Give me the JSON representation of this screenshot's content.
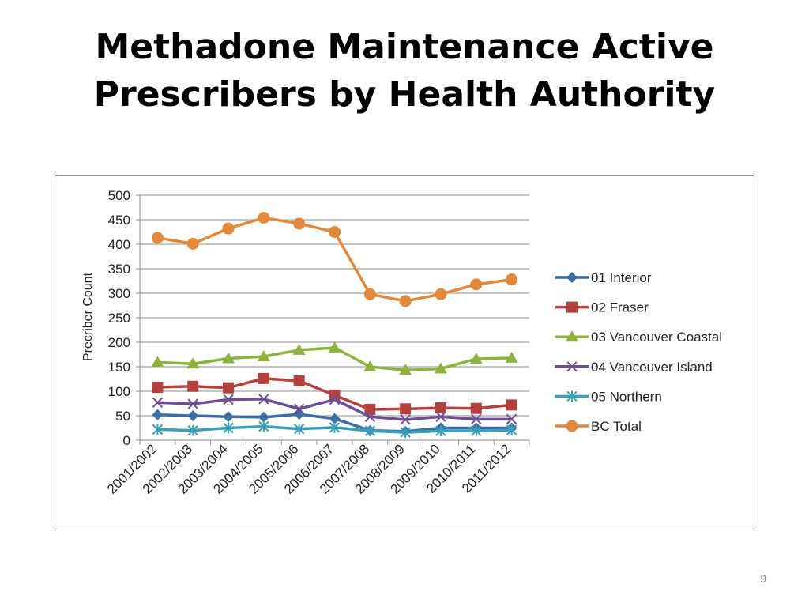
{
  "slide": {
    "title_line1": "Methadone Maintenance Active",
    "title_line2": "Prescribers by Health Authority",
    "page_number": "9"
  },
  "chart_data": {
    "type": "line",
    "title": "",
    "xlabel": "",
    "ylabel": "Precriber Count",
    "ylim": [
      0,
      500
    ],
    "yticks": [
      0,
      50,
      100,
      150,
      200,
      250,
      300,
      350,
      400,
      450,
      500
    ],
    "grid": true,
    "legend": "right",
    "categories": [
      "2001/2002",
      "2002/2003",
      "2003/2004",
      "2004/2005",
      "2005/2006",
      "2006/2007",
      "2007/2008",
      "2008/2009",
      "2009/2010",
      "2010/2011",
      "2011/2012"
    ],
    "series": [
      {
        "name": "01 Interior",
        "color": "#3a6ea5",
        "marker": "diamond",
        "values": [
          52,
          50,
          48,
          47,
          53,
          44,
          20,
          18,
          25,
          25,
          25
        ]
      },
      {
        "name": "02 Fraser",
        "color": "#b5413c",
        "marker": "square",
        "values": [
          108,
          110,
          107,
          126,
          121,
          92,
          63,
          64,
          66,
          65,
          72
        ]
      },
      {
        "name": "03 Vancouver Coastal",
        "color": "#8db33f",
        "marker": "triangle",
        "values": [
          159,
          156,
          167,
          171,
          184,
          189,
          150,
          143,
          146,
          166,
          168
        ]
      },
      {
        "name": "04 Vancouver Island",
        "color": "#6f4f93",
        "marker": "x",
        "values": [
          77,
          74,
          83,
          84,
          64,
          83,
          48,
          42,
          48,
          43,
          43
        ]
      },
      {
        "name": "05 Northern",
        "color": "#3aa0b8",
        "marker": "star",
        "values": [
          22,
          20,
          25,
          28,
          23,
          26,
          19,
          16,
          19,
          19,
          21
        ]
      },
      {
        "name": "BC Total",
        "color": "#e1883a",
        "marker": "circle",
        "values": [
          413,
          401,
          432,
          454,
          442,
          425,
          298,
          284,
          298,
          318,
          328
        ]
      }
    ]
  }
}
